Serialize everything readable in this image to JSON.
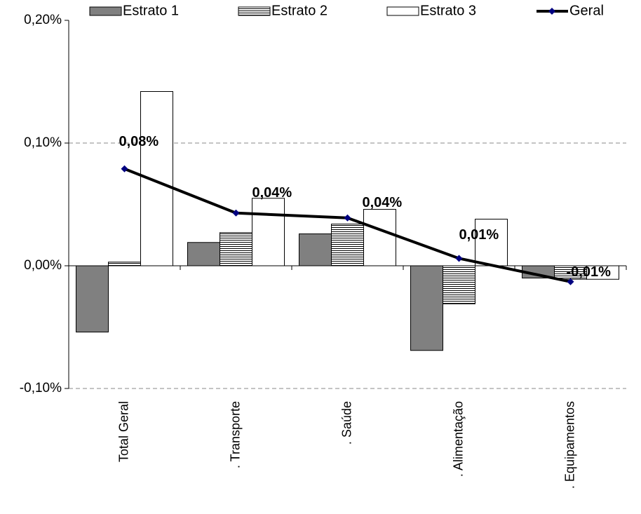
{
  "chart_data": {
    "type": "bar",
    "categories": [
      "Total Geral",
      ". Transporte",
      ". Saúde",
      ". Alimentação",
      ". Equipamentos"
    ],
    "series": [
      {
        "name": "Estrato 1",
        "color": "#808080",
        "values": [
          -0.054,
          0.019,
          0.026,
          -0.069,
          -0.01
        ]
      },
      {
        "name": "Estrato 2",
        "color": "#ffffff",
        "pattern": "horizontal-stripes",
        "values": [
          0.003,
          0.027,
          0.034,
          -0.031,
          -0.011
        ]
      },
      {
        "name": "Estrato 3",
        "color": "#ffffff",
        "values": [
          0.142,
          0.055,
          0.046,
          0.038,
          -0.011
        ]
      },
      {
        "name": "Geral",
        "type": "line",
        "color": "#000000",
        "marker_color": "#000080",
        "values": [
          0.079,
          0.043,
          0.039,
          0.006,
          -0.013
        ],
        "value_labels": [
          "0,08%",
          "0,04%",
          "0,04%",
          "0,01%",
          "-0,01%"
        ]
      }
    ],
    "ylim": [
      -0.1,
      0.2
    ],
    "yticks": [
      {
        "value": -0.1,
        "label": "-0,10%"
      },
      {
        "value": 0,
        "label": "0,00%"
      },
      {
        "value": 0.1,
        "label": "0,10%"
      },
      {
        "value": 0.2,
        "label": "0,20%"
      }
    ],
    "grid": true,
    "legend": "top"
  }
}
